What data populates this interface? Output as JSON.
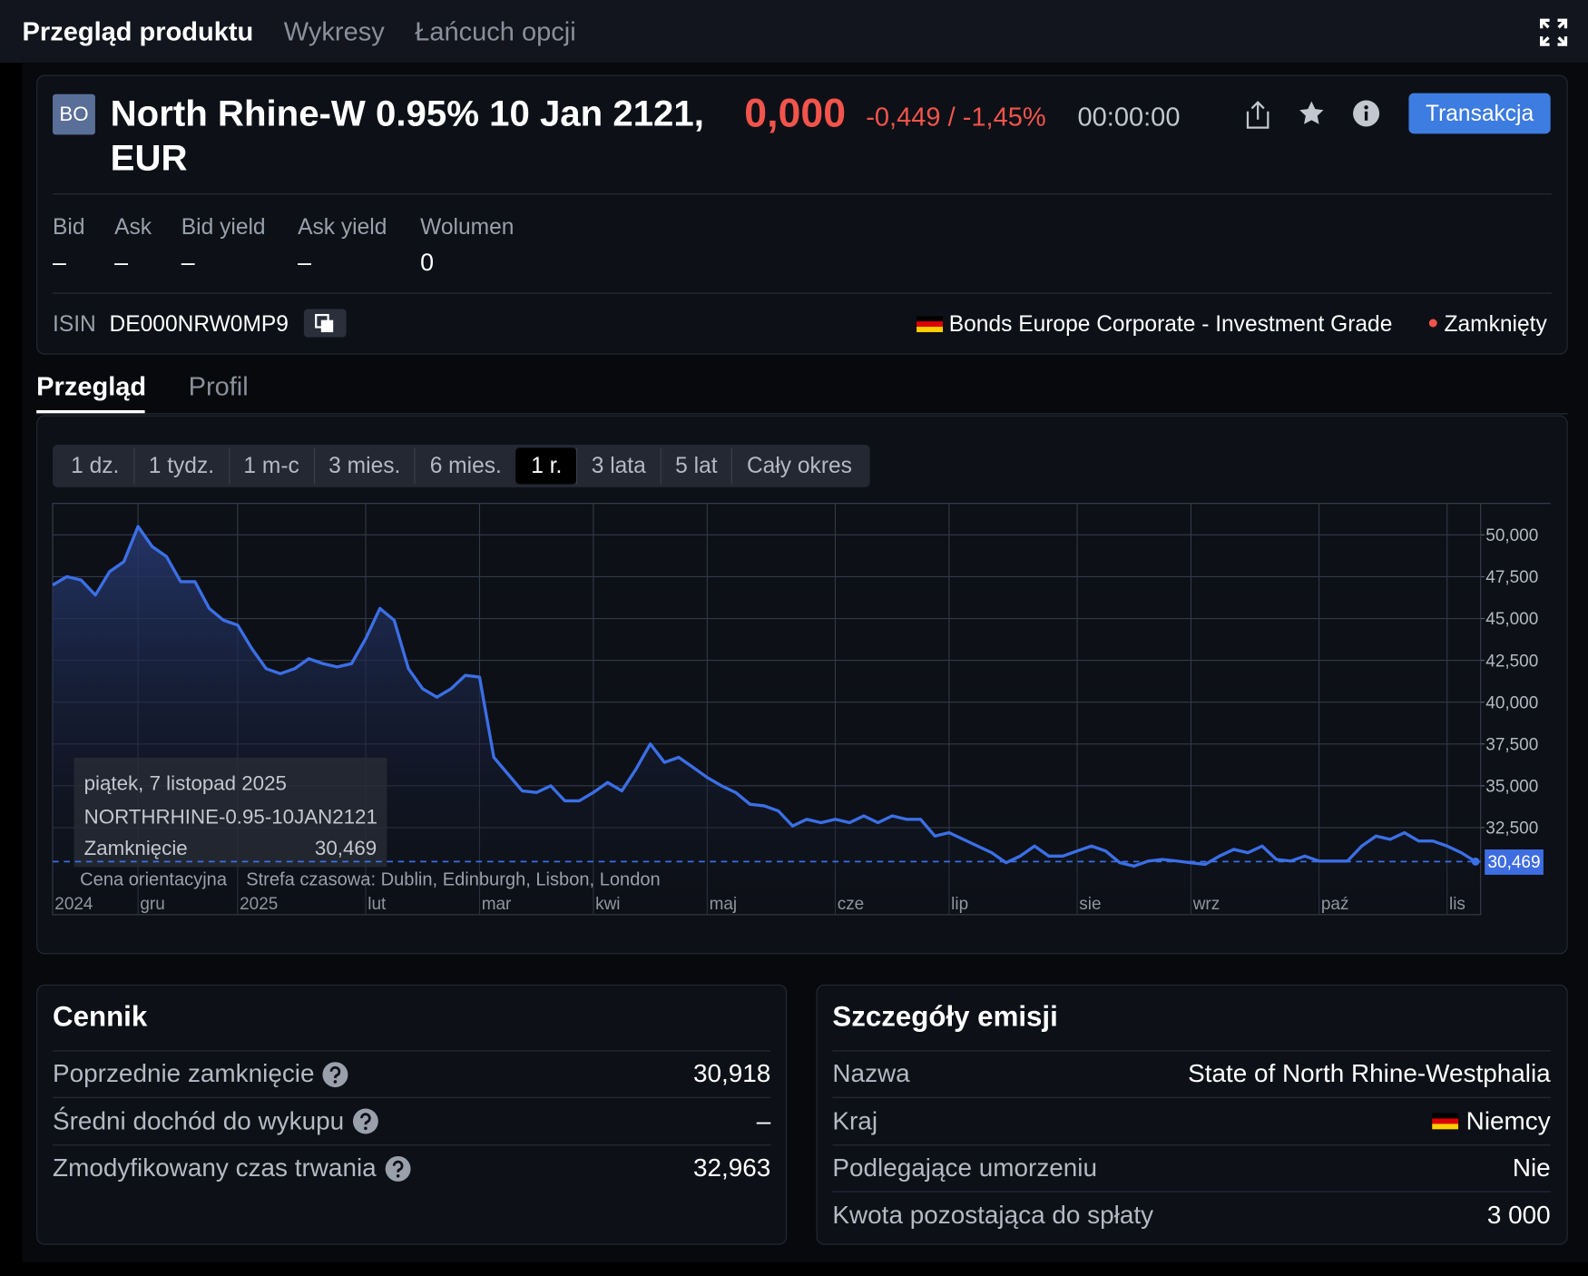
{
  "top_tabs": [
    "Przegląd produktu",
    "Wykresy",
    "Łańcuch opcji"
  ],
  "header": {
    "badge": "BO",
    "title": "North Rhine-W 0.95% 10 Jan 2121, EUR",
    "price": "0,000",
    "change": "-0,449 / -1,45%",
    "time": "00:00:00",
    "button": "Transakcja"
  },
  "quote": {
    "labels": [
      "Bid",
      "Ask",
      "Bid yield",
      "Ask yield",
      "Wolumen"
    ],
    "values": [
      "–",
      "–",
      "–",
      "–",
      "0"
    ]
  },
  "isin": {
    "label": "ISIN",
    "value": "DE000NRW0MP9",
    "market": "Bonds Europe Corporate - Investment Grade",
    "status": "Zamknięty"
  },
  "sub_tabs": [
    "Przegląd",
    "Profil"
  ],
  "ranges": [
    "1 dz.",
    "1 tydz.",
    "1 m-c",
    "3 mies.",
    "6 mies.",
    "1 r.",
    "3 lata",
    "5 lat",
    "Cały okres"
  ],
  "active_range": "1 r.",
  "chart_data": {
    "type": "line",
    "color": "#3b6fe6",
    "grid": true,
    "categories": [
      "2024",
      null,
      null,
      null,
      null,
      null,
      "gru",
      null,
      null,
      null,
      null,
      null,
      null,
      "2025",
      null,
      null,
      null,
      null,
      null,
      null,
      null,
      null,
      "lut",
      null,
      null,
      null,
      null,
      null,
      null,
      null,
      "mar",
      null,
      null,
      null,
      null,
      null,
      null,
      null,
      "kwi",
      null,
      null,
      null,
      null,
      null,
      null,
      null,
      "maj",
      null,
      null,
      null,
      null,
      null,
      null,
      null,
      null,
      "cze",
      null,
      null,
      null,
      null,
      null,
      null,
      null,
      "lip",
      null,
      null,
      null,
      null,
      null,
      null,
      null,
      null,
      "sie",
      null,
      null,
      null,
      null,
      null,
      null,
      null,
      "wrz",
      null,
      null,
      null,
      null,
      null,
      null,
      null,
      null,
      "paź",
      null,
      null,
      null,
      null,
      null,
      null,
      null,
      null,
      "lis",
      null,
      null
    ],
    "values": [
      47.0,
      47.5,
      47.3,
      46.4,
      47.8,
      48.4,
      50.5,
      49.3,
      48.7,
      47.2,
      47.2,
      45.6,
      44.9,
      44.6,
      43.2,
      42.0,
      41.7,
      42.0,
      42.6,
      42.3,
      42.1,
      42.3,
      43.8,
      45.6,
      44.9,
      42.0,
      40.8,
      40.3,
      40.8,
      41.6,
      41.5,
      36.7,
      35.7,
      34.7,
      34.6,
      35.0,
      34.1,
      34.1,
      34.6,
      35.2,
      34.7,
      36.0,
      37.5,
      36.4,
      36.7,
      36.1,
      35.5,
      35.0,
      34.6,
      33.9,
      33.8,
      33.5,
      32.6,
      33.0,
      32.8,
      33.0,
      32.8,
      33.2,
      32.8,
      33.2,
      33.0,
      33.0,
      32.0,
      32.2,
      31.8,
      31.4,
      31.0,
      30.4,
      30.8,
      31.4,
      30.8,
      30.8,
      31.1,
      31.4,
      31.1,
      30.4,
      30.2,
      30.5,
      30.6,
      30.5,
      30.4,
      30.3,
      30.8,
      31.2,
      31.0,
      31.4,
      30.6,
      30.5,
      30.8,
      30.5,
      30.5,
      30.5,
      31.4,
      32.0,
      31.8,
      32.2,
      31.7,
      31.7,
      31.4,
      31.0,
      30.469
    ],
    "ylim": [
      27.3,
      51.88
    ],
    "yticks": [
      {
        "value": 32.5,
        "label": "32,500"
      },
      {
        "value": 35,
        "label": "35,000"
      },
      {
        "value": 37.5,
        "label": "37,500"
      },
      {
        "value": 40,
        "label": "40,000"
      },
      {
        "value": 42.5,
        "label": "42,500"
      },
      {
        "value": 45,
        "label": "45,000"
      },
      {
        "value": 47.5,
        "label": "47,500"
      },
      {
        "value": 50,
        "label": "50,000"
      }
    ],
    "last_label": "30,469",
    "tooltip": {
      "date": "piątek, 7 listopad 2025",
      "symbol": "NORTHRHINE-0.95-10JAN2121",
      "label": "Zamknięcie",
      "value": "30,469"
    },
    "footer": [
      "Cena orientacyjna",
      "Strefa czasowa: Dublin, Edinburgh, Lisbon, London"
    ]
  },
  "pricing": {
    "title": "Cennik",
    "rows": [
      {
        "label": "Poprzednie zamknięcie",
        "value": "30,918",
        "help": true
      },
      {
        "label": "Średni dochód do wykupu",
        "value": "–",
        "help": true
      },
      {
        "label": "Zmodyfikowany czas trwania",
        "value": "32,963",
        "help": true
      }
    ]
  },
  "issue": {
    "title": "Szczegóły emisji",
    "rows": [
      {
        "label": "Nazwa",
        "value": "State of North Rhine-Westphalia"
      },
      {
        "label": "Kraj",
        "value": "Niemcy",
        "flag": true
      },
      {
        "label": "Podlegające umorzeniu",
        "value": "Nie"
      },
      {
        "label": "Kwota pozostająca do spłaty",
        "value": "3 000"
      }
    ]
  }
}
